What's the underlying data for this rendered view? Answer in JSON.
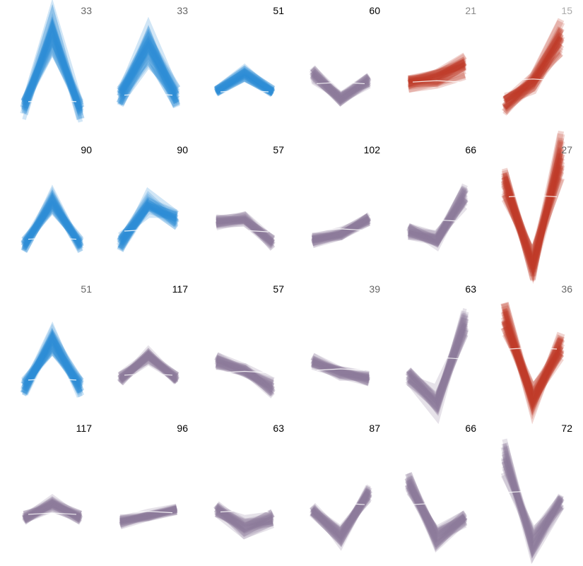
{
  "chart_data": {
    "type": "line",
    "colors": {
      "blue": "#2f8fd8",
      "purple": "#8c7a9c",
      "red": "#c0392b"
    },
    "x": [
      1,
      2,
      3
    ],
    "panels": [
      {
        "count": "33",
        "count_color": "#666666",
        "color": "blue",
        "shape": [
          -0.6,
          2.0,
          -0.6
        ],
        "spread": 0.6,
        "light_extra": true
      },
      {
        "count": "33",
        "count_color": "#666666",
        "color": "blue",
        "shape": [
          -0.2,
          1.6,
          -0.2
        ],
        "spread": 0.7,
        "light_extra": true
      },
      {
        "count": "51",
        "count_color": "#000000",
        "color": "blue",
        "shape": [
          0.0,
          0.6,
          0.0
        ],
        "spread": 0.2
      },
      {
        "count": "60",
        "count_color": "#000000",
        "color": "purple",
        "shape": [
          0.6,
          -0.2,
          0.4
        ],
        "spread": 0.3
      },
      {
        "count": "21",
        "count_color": "#888888",
        "color": "red",
        "shape": [
          0.3,
          0.5,
          0.9
        ],
        "spread": 0.4
      },
      {
        "count": "15",
        "count_color": "#aaaaaa",
        "color": "red",
        "shape": [
          -0.4,
          0.3,
          1.8
        ],
        "spread": 0.6
      },
      {
        "count": "90",
        "count_color": "#000000",
        "color": "blue",
        "shape": [
          -0.5,
          1.0,
          -0.5
        ],
        "spread": 0.3
      },
      {
        "count": "90",
        "count_color": "#000000",
        "color": "blue",
        "shape": [
          -0.4,
          0.9,
          0.4
        ],
        "spread": 0.5
      },
      {
        "count": "57",
        "count_color": "#000000",
        "color": "purple",
        "shape": [
          0.3,
          0.4,
          -0.4
        ],
        "spread": 0.3
      },
      {
        "count": "102",
        "count_color": "#000000",
        "color": "purple",
        "shape": [
          -0.3,
          -0.1,
          0.4
        ],
        "spread": 0.2
      },
      {
        "count": "66",
        "count_color": "#000000",
        "color": "purple",
        "shape": [
          0.0,
          -0.3,
          1.2
        ],
        "spread": 0.4
      },
      {
        "count": "27",
        "count_color": "#666666",
        "color": "red",
        "shape": [
          1.6,
          -1.2,
          2.6
        ],
        "spread": 0.6
      },
      {
        "count": "51",
        "count_color": "#666666",
        "color": "blue",
        "shape": [
          -0.6,
          1.0,
          -0.6
        ],
        "spread": 0.4
      },
      {
        "count": "117",
        "count_color": "#000000",
        "color": "purple",
        "shape": [
          -0.3,
          0.5,
          -0.3
        ],
        "spread": 0.2
      },
      {
        "count": "57",
        "count_color": "#000000",
        "color": "purple",
        "shape": [
          0.3,
          0.0,
          -0.6
        ],
        "spread": 0.3
      },
      {
        "count": "39",
        "count_color": "#666666",
        "color": "purple",
        "shape": [
          0.3,
          -0.1,
          -0.3
        ],
        "spread": 0.3
      },
      {
        "count": "63",
        "count_color": "#000000",
        "color": "purple",
        "shape": [
          -0.2,
          -1.1,
          1.6
        ],
        "spread": 0.5
      },
      {
        "count": "36",
        "count_color": "#666666",
        "color": "red",
        "shape": [
          1.8,
          -1.0,
          0.8
        ],
        "spread": 0.6
      },
      {
        "count": "117",
        "count_color": "#000000",
        "color": "purple",
        "shape": [
          -0.3,
          0.2,
          -0.3
        ],
        "spread": 0.3
      },
      {
        "count": "96",
        "count_color": "#000000",
        "color": "purple",
        "shape": [
          -0.4,
          -0.2,
          0.0
        ],
        "spread": 0.2
      },
      {
        "count": "63",
        "count_color": "#000000",
        "color": "purple",
        "shape": [
          0.0,
          -0.6,
          -0.3
        ],
        "spread": 0.4
      },
      {
        "count": "87",
        "count_color": "#000000",
        "color": "purple",
        "shape": [
          0.0,
          -0.9,
          0.6
        ],
        "spread": 0.3
      },
      {
        "count": "66",
        "count_color": "#000000",
        "color": "purple",
        "shape": [
          0.9,
          -1.0,
          -0.3
        ],
        "spread": 0.4
      },
      {
        "count": "72",
        "count_color": "#000000",
        "color": "purple",
        "shape": [
          1.8,
          -1.2,
          0.3
        ],
        "spread": 0.5
      }
    ]
  }
}
